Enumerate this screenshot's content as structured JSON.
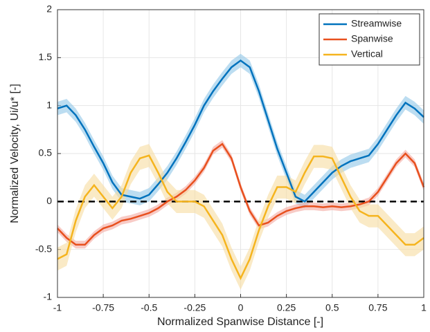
{
  "chart_data": {
    "type": "line",
    "xlabel": "Normalized Spanwise Distance [-]",
    "ylabel": "Normalized Velocity, Ui/u* [-]",
    "x": [
      -1,
      -0.95,
      -0.9,
      -0.85,
      -0.8,
      -0.75,
      -0.7,
      -0.65,
      -0.6,
      -0.55,
      -0.5,
      -0.45,
      -0.4,
      -0.35,
      -0.3,
      -0.25,
      -0.2,
      -0.15,
      -0.1,
      -0.05,
      0,
      0.05,
      0.1,
      0.15,
      0.2,
      0.25,
      0.3,
      0.35,
      0.4,
      0.45,
      0.5,
      0.55,
      0.6,
      0.65,
      0.7,
      0.75,
      0.8,
      0.85,
      0.9,
      0.95,
      1
    ],
    "series": [
      {
        "name": "Streamwise",
        "color": "#0072bd",
        "band_color": "#8fc6e8",
        "uncertainty": 0.07,
        "values": [
          0.97,
          1.0,
          0.9,
          0.75,
          0.57,
          0.4,
          0.2,
          0.07,
          0.05,
          0.03,
          0.07,
          0.18,
          0.3,
          0.45,
          0.62,
          0.8,
          1.0,
          1.15,
          1.28,
          1.4,
          1.47,
          1.4,
          1.15,
          0.85,
          0.55,
          0.3,
          0.05,
          0.0,
          0.1,
          0.2,
          0.3,
          0.37,
          0.42,
          0.45,
          0.48,
          0.6,
          0.75,
          0.9,
          1.03,
          0.97,
          0.88
        ]
      },
      {
        "name": "Spanwise",
        "color": "#e8501e",
        "band_color": "#f4a9a0",
        "uncertainty": 0.04,
        "values": [
          -0.28,
          -0.38,
          -0.45,
          -0.45,
          -0.35,
          -0.28,
          -0.25,
          -0.2,
          -0.18,
          -0.15,
          -0.12,
          -0.07,
          0.0,
          0.05,
          0.12,
          0.22,
          0.35,
          0.53,
          0.6,
          0.45,
          0.15,
          -0.1,
          -0.25,
          -0.22,
          -0.15,
          -0.1,
          -0.07,
          -0.05,
          -0.05,
          -0.06,
          -0.05,
          -0.06,
          -0.05,
          -0.03,
          0.0,
          0.1,
          0.25,
          0.4,
          0.5,
          0.4,
          0.15
        ]
      },
      {
        "name": "Vertical",
        "color": "#f5b41e",
        "band_color": "#f7dca0",
        "uncertainty": 0.12,
        "values": [
          -0.6,
          -0.55,
          -0.2,
          0.05,
          0.17,
          0.05,
          -0.07,
          0.05,
          0.3,
          0.45,
          0.48,
          0.3,
          0.1,
          0.0,
          0.0,
          0.0,
          -0.05,
          -0.2,
          -0.35,
          -0.6,
          -0.8,
          -0.6,
          -0.3,
          -0.05,
          0.15,
          0.15,
          0.1,
          0.3,
          0.47,
          0.47,
          0.45,
          0.25,
          0.05,
          -0.1,
          -0.15,
          -0.15,
          -0.25,
          -0.35,
          -0.45,
          -0.45,
          -0.38
        ]
      }
    ],
    "reference_line": 0,
    "xlim": [
      -1,
      1
    ],
    "ylim": [
      -1,
      2
    ],
    "xticks": [
      -1,
      -0.75,
      -0.5,
      -0.25,
      0,
      0.25,
      0.5,
      0.75,
      1
    ],
    "yticks": [
      -1,
      -0.5,
      0,
      0.5,
      1,
      1.5,
      2
    ],
    "grid": true,
    "legend": "top-right"
  }
}
